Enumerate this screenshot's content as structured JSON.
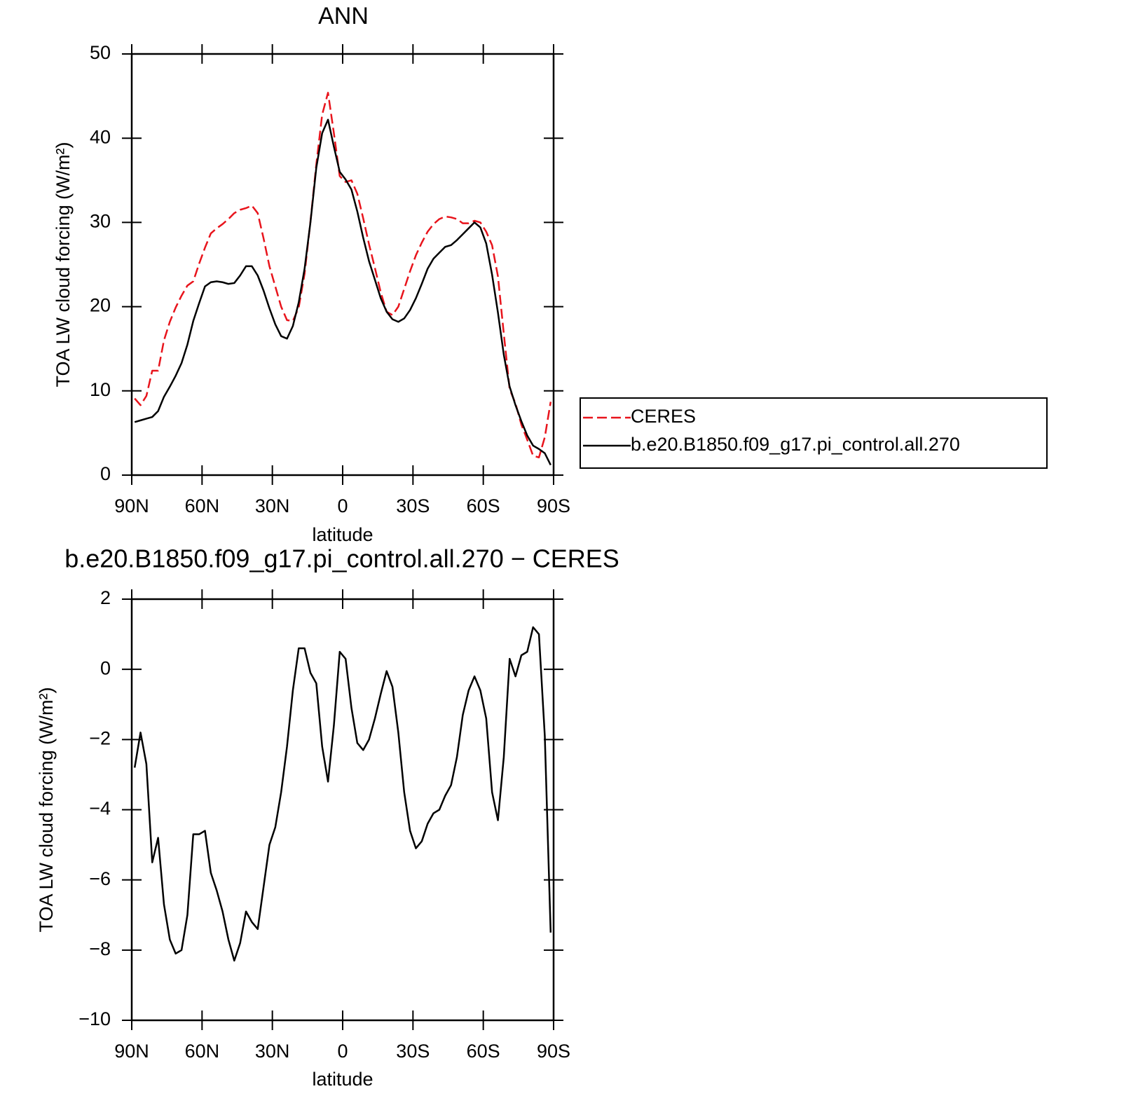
{
  "chart_data": [
    {
      "type": "line",
      "title": "ANN",
      "xlabel": "latitude",
      "ylabel": "TOA LW cloud forcing (W/m²)",
      "x": [
        88.75,
        86.25,
        83.75,
        81.25,
        78.75,
        76.25,
        73.75,
        71.25,
        68.75,
        66.25,
        63.75,
        61.25,
        58.75,
        56.25,
        53.75,
        51.25,
        48.75,
        46.25,
        43.75,
        41.25,
        38.75,
        36.25,
        33.75,
        31.25,
        28.75,
        26.25,
        23.75,
        21.25,
        18.75,
        16.25,
        13.75,
        11.25,
        8.75,
        6.25,
        3.75,
        1.25,
        -1.25,
        -3.75,
        -6.25,
        -8.75,
        -11.25,
        -13.75,
        -16.25,
        -18.75,
        -21.25,
        -23.75,
        -26.25,
        -28.75,
        -31.25,
        -33.75,
        -36.25,
        -38.75,
        -41.25,
        -43.75,
        -46.25,
        -48.75,
        -51.25,
        -53.75,
        -56.25,
        -58.75,
        -61.25,
        -63.75,
        -66.25,
        -68.75,
        -71.25,
        -73.75,
        -76.25,
        -78.75,
        -81.25,
        -83.75,
        -86.25,
        -88.75
      ],
      "series": [
        {
          "name": "CERES",
          "color": "#e8141c",
          "dashed": true,
          "values": [
            9.1,
            8.3,
            9.4,
            12.4,
            12.4,
            16.0,
            18.2,
            19.9,
            21.3,
            22.5,
            23.0,
            25.1,
            27.0,
            28.7,
            29.3,
            29.8,
            30.4,
            31.1,
            31.5,
            31.7,
            32.0,
            31.1,
            28.1,
            24.8,
            22.4,
            20.0,
            18.4,
            18.3,
            19.9,
            23.9,
            30.1,
            36.9,
            42.8,
            45.4,
            40.6,
            35.5,
            34.8,
            35.0,
            33.4,
            30.5,
            27.4,
            24.6,
            21.7,
            19.4,
            19.0,
            20.0,
            22.1,
            24.2,
            26.1,
            27.6,
            28.9,
            29.8,
            30.4,
            30.7,
            30.6,
            30.4,
            29.9,
            29.9,
            30.2,
            30.0,
            28.9,
            27.3,
            23.6,
            16.8,
            10.2,
            8.5,
            6.0,
            4.2,
            2.3,
            2.1,
            4.5,
            8.7
          ]
        },
        {
          "name": "b.e20.B1850.f09_g17.pi_control.all.270",
          "color": "#000000",
          "dashed": false,
          "values": [
            6.3,
            6.5,
            6.7,
            6.9,
            7.6,
            9.3,
            10.5,
            11.8,
            13.3,
            15.5,
            18.3,
            20.4,
            22.4,
            22.9,
            23.0,
            22.9,
            22.7,
            22.8,
            23.7,
            24.8,
            24.8,
            23.7,
            21.9,
            19.8,
            17.9,
            16.5,
            16.2,
            17.7,
            20.5,
            24.5,
            30.0,
            36.5,
            40.6,
            42.2,
            39.0,
            36.0,
            35.1,
            33.9,
            31.3,
            28.2,
            25.4,
            23.2,
            21.0,
            19.4,
            18.5,
            18.2,
            18.6,
            19.6,
            21.0,
            22.7,
            24.5,
            25.7,
            26.4,
            27.1,
            27.3,
            27.9,
            28.6,
            29.3,
            30.0,
            29.4,
            27.5,
            23.8,
            19.3,
            14.3,
            10.5,
            8.3,
            6.4,
            4.7,
            3.5,
            3.1,
            2.6,
            1.2
          ]
        }
      ],
      "xlim": [
        90,
        -90
      ],
      "xticks": [
        {
          "value": 90,
          "label": "90N"
        },
        {
          "value": 60,
          "label": "60N"
        },
        {
          "value": 30,
          "label": "30N"
        },
        0,
        {
          "value": -30,
          "label": "30S"
        },
        {
          "value": -60,
          "label": "60S"
        },
        {
          "value": -90,
          "label": "90S"
        }
      ],
      "ylim": [
        0,
        50
      ],
      "yticks": [
        0,
        10,
        20,
        30,
        40,
        50
      ],
      "legend": "right"
    },
    {
      "type": "line",
      "title": "b.e20.B1850.f09_g17.pi_control.all.270 − CERES",
      "xlabel": "latitude",
      "ylabel": "TOA LW cloud forcing (W/m²)",
      "x": [
        88.75,
        86.25,
        83.75,
        81.25,
        78.75,
        76.25,
        73.75,
        71.25,
        68.75,
        66.25,
        63.75,
        61.25,
        58.75,
        56.25,
        53.75,
        51.25,
        48.75,
        46.25,
        43.75,
        41.25,
        38.75,
        36.25,
        33.75,
        31.25,
        28.75,
        26.25,
        23.75,
        21.25,
        18.75,
        16.25,
        13.75,
        11.25,
        8.75,
        6.25,
        3.75,
        1.25,
        -1.25,
        -3.75,
        -6.25,
        -8.75,
        -11.25,
        -13.75,
        -16.25,
        -18.75,
        -21.25,
        -23.75,
        -26.25,
        -28.75,
        -31.25,
        -33.75,
        -36.25,
        -38.75,
        -41.25,
        -43.75,
        -46.25,
        -48.75,
        -51.25,
        -53.75,
        -56.25,
        -58.75,
        -61.25,
        -63.75,
        -66.25,
        -68.75,
        -71.25,
        -73.75,
        -76.25,
        -78.75,
        -81.25,
        -83.75,
        -86.25,
        -88.75
      ],
      "series": [
        {
          "color": "#000000",
          "dashed": false,
          "values": [
            -2.8,
            -1.8,
            -2.7,
            -5.5,
            -4.8,
            -6.7,
            -7.7,
            -8.1,
            -8.0,
            -7.0,
            -4.7,
            -4.7,
            -4.6,
            -5.8,
            -6.3,
            -6.9,
            -7.7,
            -8.3,
            -7.8,
            -6.9,
            -7.2,
            -7.4,
            -6.2,
            -5.0,
            -4.5,
            -3.5,
            -2.2,
            -0.6,
            0.6,
            0.6,
            -0.1,
            -0.4,
            -2.2,
            -3.2,
            -1.6,
            0.5,
            0.3,
            -1.1,
            -2.1,
            -2.3,
            -2.0,
            -1.4,
            -0.7,
            -0.05,
            -0.5,
            -1.8,
            -3.5,
            -4.6,
            -5.1,
            -4.9,
            -4.4,
            -4.1,
            -4.0,
            -3.6,
            -3.3,
            -2.5,
            -1.3,
            -0.6,
            -0.2,
            -0.6,
            -1.4,
            -3.5,
            -4.3,
            -2.5,
            0.3,
            -0.2,
            0.4,
            0.5,
            1.2,
            1.0,
            -1.9,
            -7.5
          ]
        }
      ],
      "xlim": [
        90,
        -90
      ],
      "xticks": [
        {
          "value": 90,
          "label": "90N"
        },
        {
          "value": 60,
          "label": "60N"
        },
        {
          "value": 30,
          "label": "30N"
        },
        0,
        {
          "value": -30,
          "label": "30S"
        },
        {
          "value": -60,
          "label": "60S"
        },
        {
          "value": -90,
          "label": "90S"
        }
      ],
      "ylim": [
        -10,
        2
      ],
      "yticks": [
        {
          "value": -10,
          "label": "−10"
        },
        {
          "value": -8,
          "label": "−8"
        },
        {
          "value": -6,
          "label": "−6"
        },
        {
          "value": -4,
          "label": "−4"
        },
        {
          "value": -2,
          "label": "−2"
        },
        0,
        2
      ]
    }
  ]
}
